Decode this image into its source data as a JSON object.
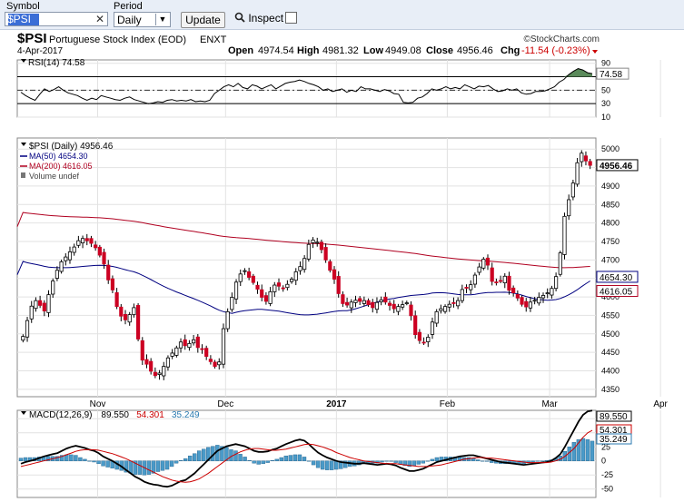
{
  "toolbar": {
    "symbol_label": "Symbol",
    "symbol_value": "$PSI",
    "clear_icon": "x-icon",
    "period_label": "Period",
    "period_value": "Daily",
    "update_label": "Update",
    "inspect_label": "Inspect",
    "inspect_icon": "magnifier-icon"
  },
  "header": {
    "symbol": "$PSI",
    "name": "Portuguese Stock Index (EOD)",
    "exchange": "ENXT",
    "date": "4-Apr-2017",
    "brand": "©StockCharts.com",
    "open_label": "Open",
    "open": "4974.54",
    "high_label": "High",
    "high": "4981.32",
    "low_label": "Low",
    "low": "4949.08",
    "close_label": "Close",
    "close": "4956.46",
    "chg_label": "Chg",
    "chg": "-11.54 (-0.23%)",
    "chg_color": "#cc0000"
  },
  "chart_data": [
    {
      "type": "line",
      "panel": "RSI",
      "legend": "RSI(14) 74.58",
      "current": "74.58",
      "ylim": [
        10,
        95
      ],
      "yticks": [
        90,
        70,
        50,
        30,
        10
      ],
      "bands": [
        70,
        30
      ],
      "centerline": 50,
      "color": "#000000",
      "overbought_fill": "#5a8a5a",
      "values": [
        47,
        42,
        38,
        35,
        44,
        52,
        48,
        51,
        55,
        50,
        46,
        44,
        42,
        38,
        35,
        38,
        36,
        42,
        40,
        38,
        36,
        35,
        38,
        40,
        36,
        34,
        32,
        30,
        31,
        33,
        32,
        35,
        36,
        34,
        35,
        34,
        36,
        33,
        34,
        33,
        35,
        45,
        50,
        55,
        58,
        55,
        60,
        54,
        52,
        58,
        56,
        52,
        55,
        58,
        52,
        56,
        60,
        62,
        63,
        65,
        63,
        60,
        58,
        55,
        50,
        52,
        48,
        50,
        52,
        47,
        50,
        48,
        55,
        52,
        52,
        50,
        48,
        51,
        49,
        45,
        44,
        32,
        31,
        32,
        38,
        40,
        45,
        52,
        50,
        52,
        55,
        52,
        54,
        52,
        58,
        55,
        52,
        56,
        55,
        57,
        52,
        48,
        49,
        52,
        50,
        52,
        46,
        44,
        45,
        48,
        48,
        49,
        52,
        55,
        62,
        66,
        73,
        78,
        82,
        80,
        76,
        74.58
      ]
    },
    {
      "type": "candlestick",
      "panel": "price",
      "legend": [
        {
          "text": "$PSI (Daily) 4956.46",
          "color": "#000000"
        },
        {
          "text": "MA(50) 4654.30",
          "color": "#000080"
        },
        {
          "text": "MA(200) 4616.05",
          "color": "#b00020"
        },
        {
          "text": "Volume undef",
          "color": "#444444"
        }
      ],
      "ylim": [
        4330,
        5030
      ],
      "yticks": [
        5000,
        4950,
        4900,
        4850,
        4800,
        4750,
        4700,
        4650,
        4600,
        4550,
        4500,
        4450,
        4400,
        4350
      ],
      "xlabels": [
        "Nov",
        "Dec",
        "2017",
        "Feb",
        "Mar",
        "Apr"
      ],
      "up_color": "#ffffff",
      "down_color": "#cc0022",
      "last_value_tags": [
        {
          "text": "4956.46",
          "value": 4956.46,
          "style": "price"
        },
        {
          "text": "4654.30",
          "value": 4654.3,
          "color": "#000080"
        },
        {
          "text": "4616.05",
          "value": 4616.05,
          "color": "#b00020"
        }
      ],
      "close": [
        4493,
        4536,
        4575,
        4590,
        4577,
        4562,
        4606,
        4643,
        4672,
        4695,
        4708,
        4722,
        4735,
        4752,
        4758,
        4752,
        4745,
        4733,
        4713,
        4689,
        4646,
        4619,
        4574,
        4548,
        4538,
        4552,
        4571,
        4486,
        4429,
        4418,
        4399,
        4387,
        4394,
        4412,
        4435,
        4448,
        4462,
        4478,
        4468,
        4474,
        4484,
        4463,
        4458,
        4439,
        4425,
        4412,
        4424,
        4514,
        4560,
        4599,
        4640,
        4662,
        4671,
        4653,
        4639,
        4621,
        4599,
        4588,
        4614,
        4632,
        4629,
        4624,
        4634,
        4648,
        4668,
        4682,
        4704,
        4742,
        4754,
        4748,
        4728,
        4700,
        4672,
        4648,
        4609,
        4582,
        4578,
        4586,
        4591,
        4588,
        4590,
        4579,
        4571,
        4585,
        4592,
        4586,
        4577,
        4568,
        4574,
        4579,
        4584,
        4549,
        4498,
        4482,
        4477,
        4491,
        4532,
        4560,
        4568,
        4574,
        4580,
        4582,
        4590,
        4620,
        4624,
        4633,
        4659,
        4681,
        4702,
        4686,
        4642,
        4640,
        4644,
        4656,
        4618,
        4611,
        4597,
        4580,
        4573,
        4586,
        4591,
        4599,
        4604,
        4611,
        4623,
        4655,
        4719,
        4818,
        4863,
        4908,
        4963,
        4989,
        4968,
        4956
      ]
    },
    {
      "type": "line",
      "panel": "MACD",
      "legend": [
        {
          "text": "MACD(12,26,9)",
          "color": "#000000"
        },
        {
          "text": "89.550",
          "color": "#000000"
        },
        {
          "text": "54.301",
          "color": "#cc0000"
        },
        {
          "text": "35.249",
          "color": "#2a7ab0"
        }
      ],
      "ylim": [
        -65,
        90
      ],
      "yticks": [
        75,
        50,
        25,
        0,
        -25,
        -50
      ],
      "series": [
        {
          "name": "MACD(12,26,9)",
          "color": "#000000",
          "last": "89.550",
          "values": [
            -5,
            -2,
            0,
            2,
            5,
            8,
            10,
            12,
            14,
            18,
            22,
            25,
            27,
            25,
            23,
            20,
            18,
            14,
            8,
            4,
            0,
            -5,
            -10,
            -16,
            -22,
            -28,
            -32,
            -37,
            -40,
            -42,
            -43,
            -45,
            -46,
            -44,
            -40,
            -36,
            -34,
            -28,
            -22,
            -14,
            -6,
            2,
            10,
            18,
            22,
            26,
            28,
            30,
            28,
            26,
            22,
            18,
            16,
            16,
            17,
            20,
            22,
            26,
            30,
            33,
            36,
            38,
            36,
            30,
            22,
            15,
            10,
            6,
            3,
            0,
            -2,
            -3,
            -4,
            -5,
            -5,
            -4,
            -5,
            -6,
            -7,
            -6,
            -5,
            -6,
            -8,
            -12,
            -15,
            -18,
            -18,
            -16,
            -14,
            -10,
            -6,
            -2,
            0,
            2,
            4,
            6,
            8,
            9,
            10,
            10,
            8,
            6,
            4,
            2,
            0,
            -2,
            -3,
            -4,
            -5,
            -6,
            -7,
            -6,
            -5,
            -4,
            -3,
            -2,
            0,
            5,
            12,
            25,
            40,
            55,
            70,
            82,
            88,
            89.55
          ]
        },
        {
          "name": "Signal",
          "color": "#cc0000",
          "last": "54.301",
          "values": [
            -10,
            -8,
            -6,
            -4,
            -2,
            0,
            2,
            4,
            6,
            8,
            11,
            14,
            17,
            19,
            20,
            20,
            20,
            19,
            17,
            15,
            13,
            10,
            7,
            4,
            0,
            -4,
            -8,
            -12,
            -16,
            -20,
            -24,
            -28,
            -31,
            -34,
            -36,
            -37,
            -38,
            -37,
            -35,
            -32,
            -27,
            -22,
            -16,
            -10,
            -4,
            2,
            8,
            12,
            16,
            19,
            21,
            22,
            22,
            21,
            20,
            19,
            19,
            20,
            21,
            23,
            25,
            27,
            29,
            30,
            29,
            27,
            25,
            22,
            19,
            15,
            12,
            9,
            6,
            4,
            2,
            0,
            -1,
            -2,
            -3,
            -4,
            -5,
            -5,
            -5,
            -6,
            -7,
            -8,
            -9,
            -10,
            -10,
            -10,
            -9,
            -8,
            -7,
            -5,
            -3,
            -1,
            1,
            3,
            4,
            5,
            6,
            6,
            5,
            5,
            4,
            3,
            2,
            1,
            0,
            -1,
            -2,
            -3,
            -3,
            -3,
            -3,
            -3,
            -2,
            0,
            3,
            8,
            15,
            22,
            32,
            42,
            50,
            54.301
          ]
        },
        {
          "name": "Histogram",
          "color": "#2a7ab0",
          "type": "bar",
          "last": "35.249",
          "values": [
            5,
            6,
            6,
            6,
            7,
            8,
            8,
            8,
            8,
            10,
            11,
            11,
            10,
            6,
            3,
            0,
            -2,
            -5,
            -9,
            -11,
            -13,
            -15,
            -17,
            -20,
            -22,
            -24,
            -24,
            -25,
            -24,
            -22,
            -19,
            -17,
            -15,
            -10,
            -4,
            1,
            4,
            9,
            13,
            18,
            21,
            24,
            26,
            28,
            26,
            24,
            20,
            18,
            12,
            7,
            1,
            -4,
            -6,
            -5,
            -3,
            1,
            3,
            6,
            9,
            10,
            11,
            11,
            7,
            0,
            -7,
            -12,
            -15,
            -16,
            -16,
            -15,
            -14,
            -12,
            -10,
            -9,
            -7,
            -4,
            -4,
            -4,
            -4,
            -2,
            0,
            -1,
            -3,
            -6,
            -8,
            -10,
            -9,
            -6,
            -4,
            0,
            3,
            6,
            7,
            7,
            7,
            7,
            7,
            6,
            6,
            5,
            2,
            0,
            -1,
            -3,
            -4,
            -5,
            -5,
            -5,
            -5,
            -5,
            -5,
            -3,
            -2,
            -1,
            0,
            1,
            2,
            5,
            9,
            17,
            25,
            33,
            38,
            40,
            38,
            35.249
          ]
        }
      ]
    }
  ]
}
